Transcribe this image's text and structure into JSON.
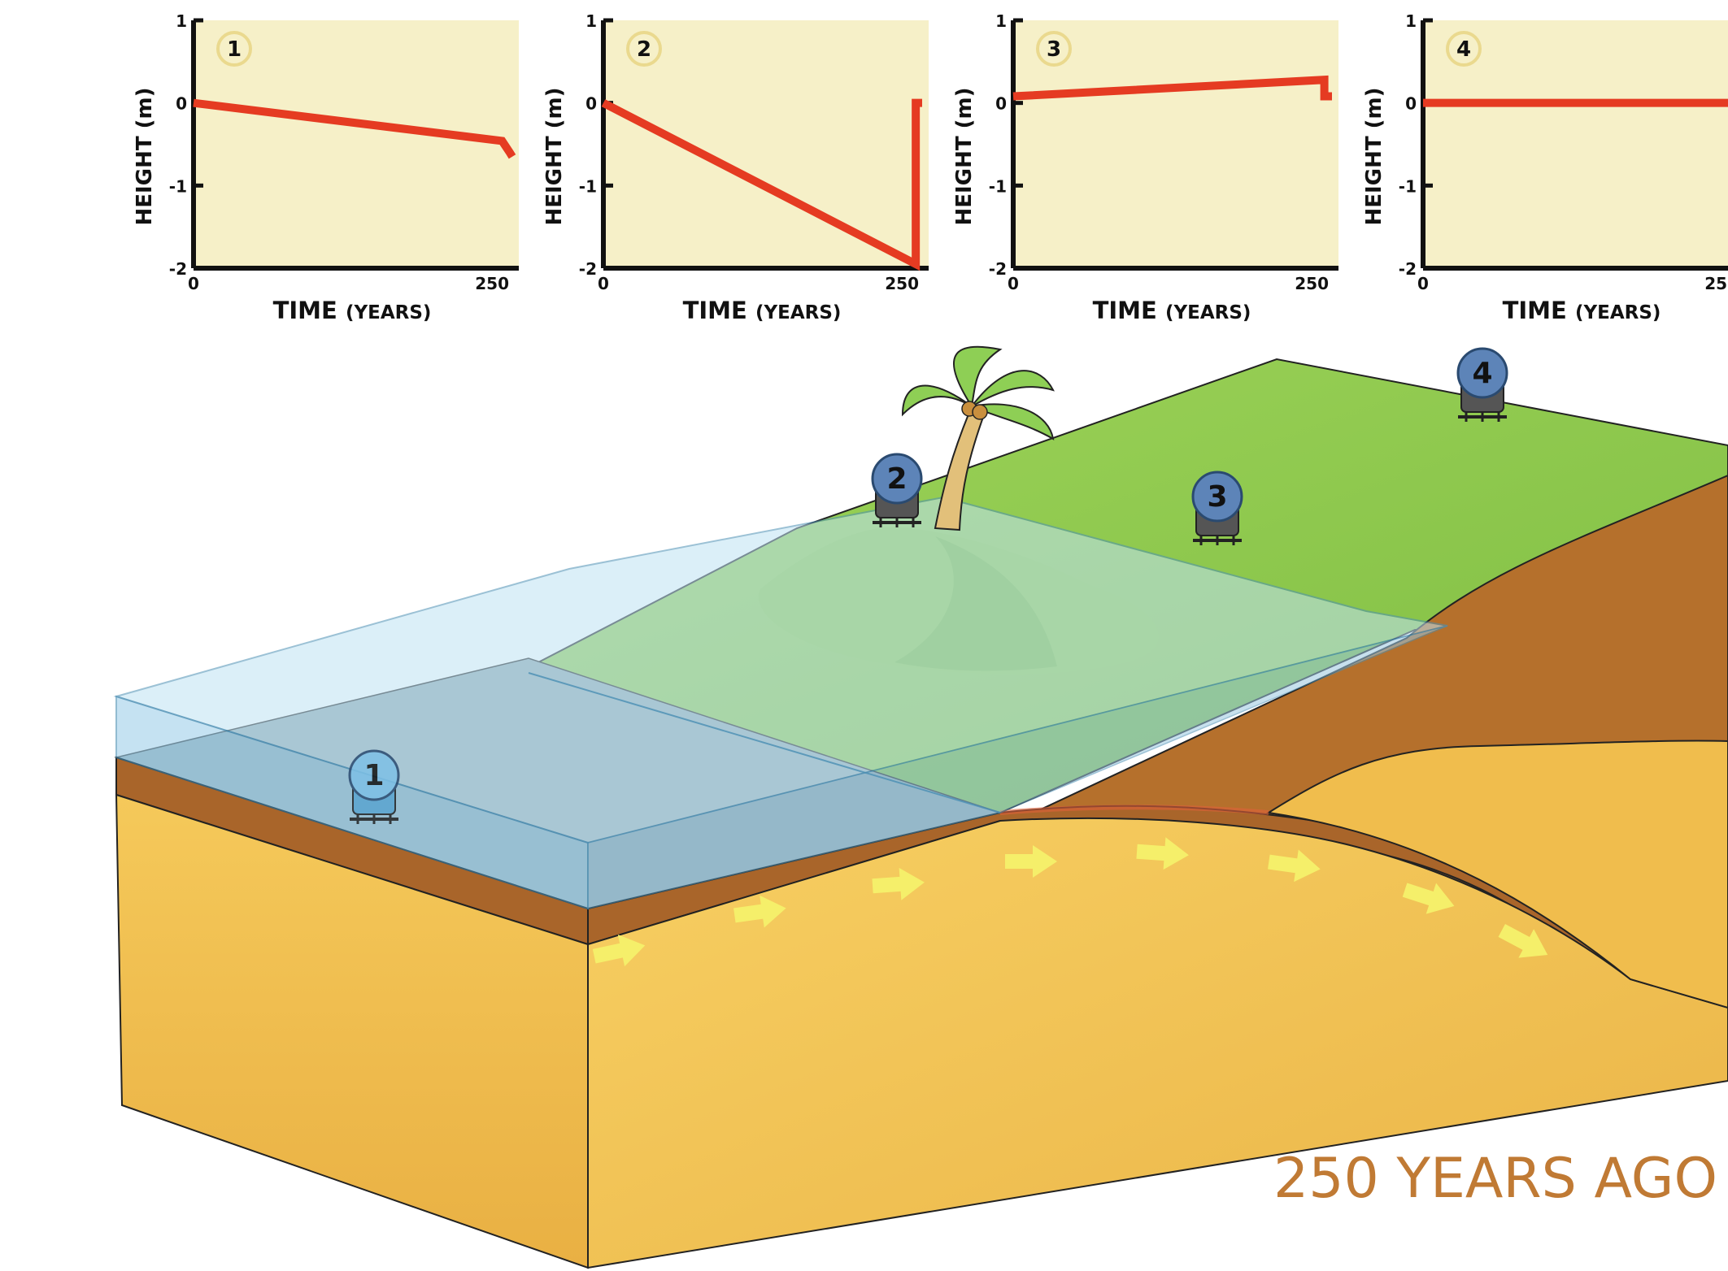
{
  "charts": {
    "y_axis_label": "HEIGHT (m)",
    "x_axis_label_main": "TIME",
    "x_axis_label_unit": "(YEARS)",
    "y_ticks": [
      "1",
      "0",
      "-1",
      "-2"
    ],
    "x_ticks": [
      "0",
      "250"
    ]
  },
  "chart_data": [
    {
      "type": "line",
      "panel_label": "1",
      "xlabel": "TIME (YEARS)",
      "ylabel": "HEIGHT (m)",
      "xlim": [
        0,
        250
      ],
      "ylim": [
        -2,
        1
      ],
      "x": [
        0,
        242,
        248,
        250
      ],
      "y": [
        0,
        -0.46,
        -0.6,
        -0.65
      ]
    },
    {
      "type": "line",
      "panel_label": "2",
      "xlabel": "TIME (YEARS)",
      "ylabel": "HEIGHT (m)",
      "xlim": [
        0,
        250
      ],
      "ylim": [
        -2,
        1
      ],
      "x": [
        0,
        245,
        245,
        250
      ],
      "y": [
        0,
        -1.95,
        0,
        0
      ]
    },
    {
      "type": "line",
      "panel_label": "3",
      "xlabel": "TIME (YEARS)",
      "ylabel": "HEIGHT (m)",
      "xlim": [
        0,
        250
      ],
      "ylim": [
        -2,
        1
      ],
      "x": [
        0,
        244,
        244,
        250
      ],
      "y": [
        0.08,
        0.28,
        0.08,
        0.08
      ]
    },
    {
      "type": "line",
      "panel_label": "4",
      "xlabel": "TIME (YEARS)",
      "ylabel": "HEIGHT (m)",
      "xlim": [
        0,
        250
      ],
      "ylim": [
        -2,
        1
      ],
      "x": [
        0,
        250
      ],
      "y": [
        0,
        0
      ]
    }
  ],
  "stations": [
    {
      "label": "1",
      "state": "submerged"
    },
    {
      "label": "2",
      "state": "land"
    },
    {
      "label": "3",
      "state": "land"
    },
    {
      "label": "4",
      "state": "land"
    }
  ],
  "caption": "250 YEARS AGO",
  "colors": {
    "plot_bg": "#f6f0c8",
    "line": "#e53b22",
    "water": "#aedaf0",
    "grass": "#8cc84b",
    "soil": "#b06e2a",
    "sand": "#f2c04e",
    "caption": "#c07a34"
  }
}
